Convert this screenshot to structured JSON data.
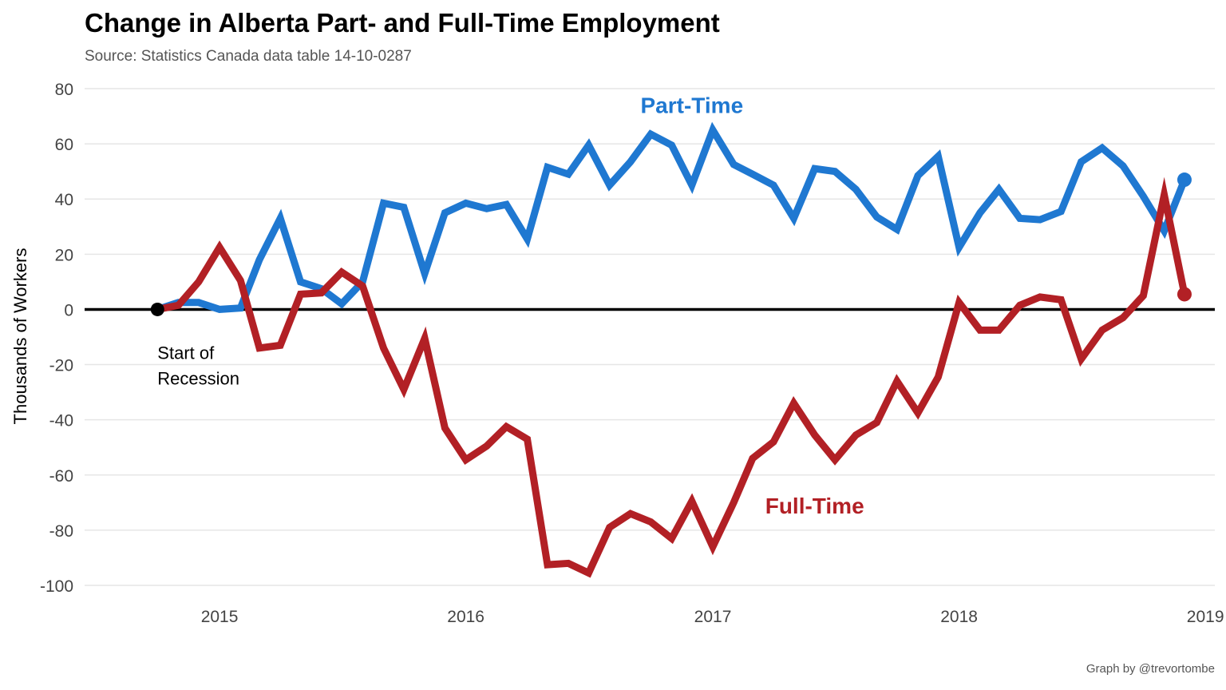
{
  "chart_data": {
    "type": "line",
    "title": "Change in Alberta Part- and Full-Time Employment",
    "subtitle": "Source: Statistics Canada data table 14-10-0287",
    "caption": "Graph by @trevortombe",
    "ylabel": "Thousands of Workers",
    "xlabel": "",
    "ylim": [
      -100,
      80
    ],
    "yticks": [
      80,
      60,
      40,
      20,
      0,
      -20,
      -40,
      -60,
      -80,
      -100
    ],
    "ytick_labels": [
      "80",
      "60",
      "40",
      "20",
      "0",
      "-20",
      "-40",
      "-60",
      "-80",
      "-100"
    ],
    "xlim": [
      "2014-06-15",
      "2019-01-15"
    ],
    "xticks": [
      "2015-01-01",
      "2016-01-01",
      "2017-01-01",
      "2018-01-01",
      "2019-01-01"
    ],
    "xtick_labels": [
      "2015",
      "2016",
      "2017",
      "2018",
      "2019"
    ],
    "grid": true,
    "zero_line": true,
    "annotation": {
      "lines": [
        "Start of",
        "Recession"
      ],
      "x": "2014-10-01",
      "y": 0
    },
    "x": [
      "2014-10-01",
      "2014-11-01",
      "2014-12-01",
      "2015-01-01",
      "2015-02-01",
      "2015-03-01",
      "2015-04-01",
      "2015-05-01",
      "2015-06-01",
      "2015-07-01",
      "2015-08-01",
      "2015-09-01",
      "2015-10-01",
      "2015-11-01",
      "2015-12-01",
      "2016-01-01",
      "2016-02-01",
      "2016-03-01",
      "2016-04-01",
      "2016-05-01",
      "2016-06-01",
      "2016-07-01",
      "2016-08-01",
      "2016-09-01",
      "2016-10-01",
      "2016-11-01",
      "2016-12-01",
      "2017-01-01",
      "2017-02-01",
      "2017-03-01",
      "2017-04-01",
      "2017-05-01",
      "2017-06-01",
      "2017-07-01",
      "2017-08-01",
      "2017-09-01",
      "2017-10-01",
      "2017-11-01",
      "2017-12-01",
      "2018-01-01",
      "2018-02-01",
      "2018-03-01",
      "2018-04-01",
      "2018-05-01",
      "2018-06-01",
      "2018-07-01",
      "2018-08-01",
      "2018-09-01",
      "2018-10-01",
      "2018-11-01",
      "2018-12-01"
    ],
    "series": [
      {
        "name": "Part-Time",
        "color": "#1f78d1",
        "label_x": "2016-12-01",
        "label_y": 74,
        "values": [
          0,
          2.5,
          2.5,
          0,
          0.5,
          18,
          33,
          10,
          7.5,
          2,
          10,
          38.5,
          37,
          13,
          35,
          38.5,
          36.5,
          38,
          25.5,
          51.5,
          49,
          59.5,
          45,
          53.5,
          63.5,
          59.5,
          45,
          65,
          52.5,
          49,
          45,
          33,
          51,
          50,
          43.5,
          33.5,
          29,
          48.5,
          55.5,
          22.5,
          35,
          43.5,
          33,
          32.5,
          35.5,
          53.5,
          58.5,
          52,
          41,
          28.5,
          47
        ]
      },
      {
        "name": "Full-Time",
        "color": "#b22025",
        "label_x": "2017-06-01",
        "label_y": -71,
        "values": [
          0,
          1.5,
          10,
          22.5,
          10.5,
          -14,
          -13,
          5.5,
          6,
          13.5,
          8.5,
          -14,
          -29,
          -10.5,
          -43,
          -54.5,
          -49.5,
          -42.5,
          -47,
          -92.5,
          -92,
          -95.5,
          -79,
          -74,
          -77,
          -83,
          -69.5,
          -86,
          -70,
          -54,
          -48,
          -34,
          -45.5,
          -54.5,
          -45.5,
          -41,
          -26,
          -37.5,
          -24.5,
          2.5,
          -7.5,
          -7.5,
          1.5,
          4.5,
          3.5,
          -18,
          -7.5,
          -3,
          5,
          41.5,
          5.5
        ]
      }
    ]
  }
}
